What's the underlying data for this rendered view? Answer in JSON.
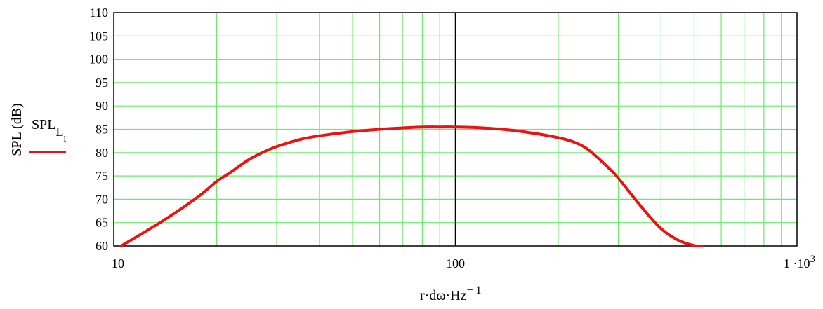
{
  "chart_data": {
    "type": "line",
    "title": "",
    "xlabel": "r·dω·Hz",
    "xlabel_exponent": "− 1",
    "ylabel": "SPL (dB)",
    "x_scale": "log",
    "xlim": [
      10,
      1000
    ],
    "ylim": [
      60,
      110
    ],
    "x_ticks": [
      {
        "value": 10,
        "label": "10"
      },
      {
        "value": 100,
        "label": "100"
      },
      {
        "value": 1000,
        "label": "1 ·10",
        "exponent": "3"
      }
    ],
    "y_ticks": [
      {
        "value": 60,
        "label": "60"
      },
      {
        "value": 65,
        "label": "65"
      },
      {
        "value": 70,
        "label": "70"
      },
      {
        "value": 75,
        "label": "75"
      },
      {
        "value": 80,
        "label": "80"
      },
      {
        "value": 85,
        "label": "85"
      },
      {
        "value": 90,
        "label": "90"
      },
      {
        "value": 95,
        "label": "95"
      },
      {
        "value": 100,
        "label": "100"
      },
      {
        "value": 105,
        "label": "105"
      },
      {
        "value": 110,
        "label": "110"
      }
    ],
    "grid": true,
    "grid_color": "#66ee66",
    "marker_line_x": 100,
    "legend": {
      "placement": "left",
      "base": "SPL",
      "sub1": "L",
      "sub2": "r"
    },
    "series": [
      {
        "name": "SPL_Lr",
        "color": "#ee1111",
        "x": [
          10.5,
          12,
          14,
          16,
          18,
          20,
          22,
          25,
          28,
          30,
          35,
          40,
          50,
          60,
          70,
          80,
          90,
          100,
          120,
          150,
          200,
          230,
          250,
          280,
          300,
          350,
          400,
          450,
          500,
          530
        ],
        "y": [
          60,
          62.5,
          65.5,
          68.3,
          71,
          73.8,
          75.8,
          78.6,
          80.4,
          81.3,
          82.8,
          83.6,
          84.5,
          85,
          85.3,
          85.5,
          85.5,
          85.5,
          85.3,
          84.7,
          83.2,
          81.8,
          80.1,
          76.8,
          74.5,
          68.4,
          63.7,
          61.2,
          60.1,
          60
        ]
      }
    ]
  }
}
